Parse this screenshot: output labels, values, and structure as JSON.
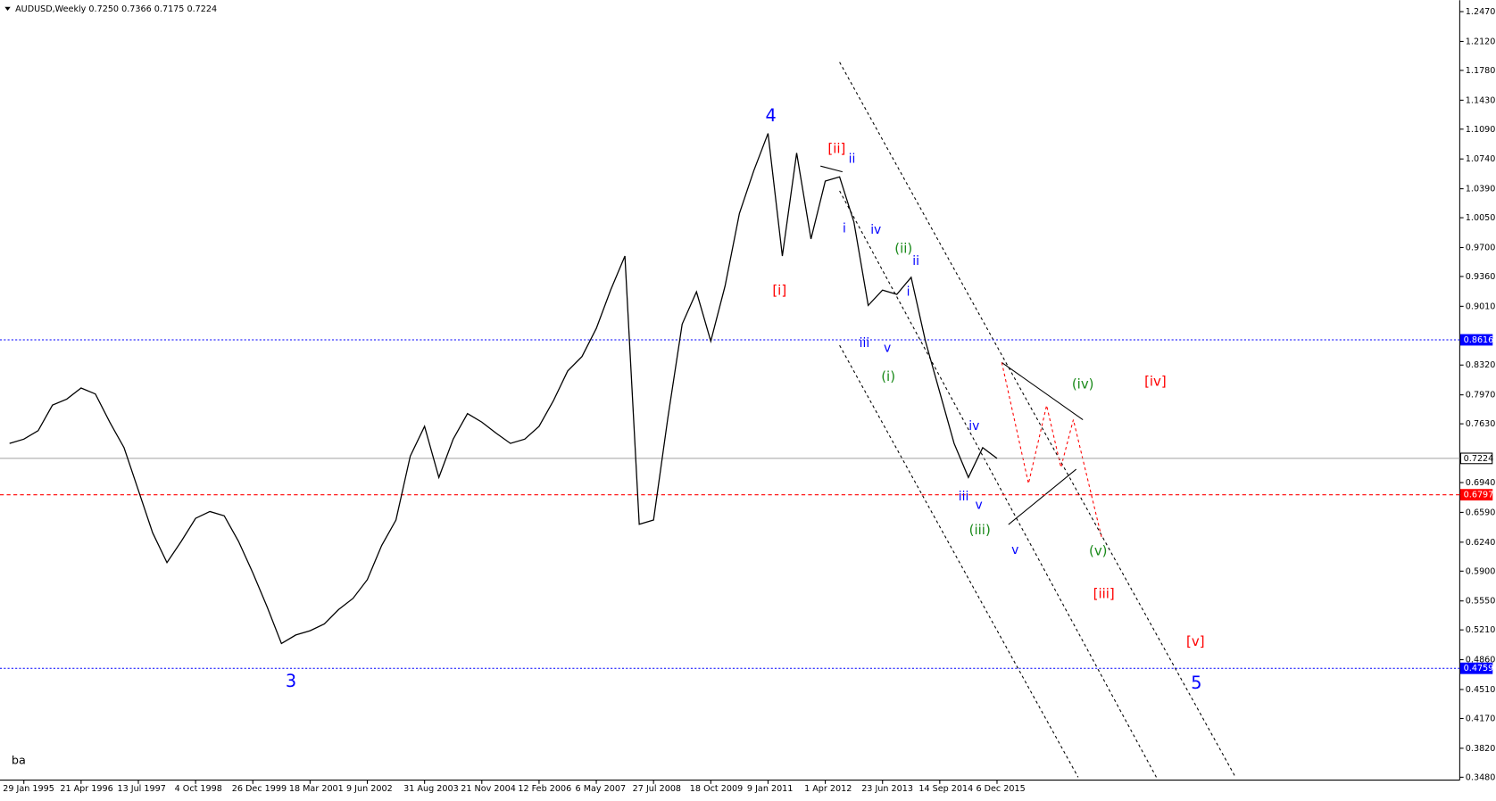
{
  "chart_data": {
    "type": "line",
    "title": "AUDUSD,Weekly  0.7250 0.7366 0.7175 0.7224",
    "footnote": "ba",
    "color": "#000000",
    "categories": [
      null,
      "29 Jan 1995",
      null,
      null,
      null,
      "21 Apr 1996",
      null,
      null,
      null,
      "13 Jul 1997",
      null,
      null,
      null,
      "4 Oct 1998",
      null,
      null,
      null,
      "26 Dec 1999",
      null,
      null,
      null,
      "18 Mar 2001",
      null,
      null,
      null,
      "9 Jun 2002",
      null,
      null,
      null,
      "31 Aug 2003",
      null,
      null,
      null,
      "21 Nov 2004",
      null,
      null,
      null,
      "12 Feb 2006",
      null,
      null,
      null,
      "6 May 2007",
      null,
      null,
      null,
      "27 Jul 2008",
      null,
      null,
      null,
      "18 Oct 2009",
      null,
      null,
      null,
      "9 Jan 2011",
      null,
      null,
      null,
      "1 Apr 2012",
      null,
      null,
      null,
      "23 Jun 2013",
      null,
      null,
      null,
      "14 Sep 2014",
      null,
      null,
      null,
      "6 Dec 2015"
    ],
    "values": [
      0.74,
      0.745,
      0.755,
      0.785,
      0.792,
      0.805,
      0.798,
      0.765,
      0.735,
      0.685,
      0.635,
      0.6,
      0.625,
      0.652,
      0.66,
      0.655,
      0.625,
      0.588,
      0.548,
      0.505,
      0.515,
      0.52,
      0.528,
      0.545,
      0.558,
      0.58,
      0.62,
      0.65,
      0.725,
      0.76,
      0.7,
      0.745,
      0.775,
      0.765,
      0.752,
      0.74,
      0.745,
      0.76,
      0.79,
      0.825,
      0.842,
      0.875,
      0.92,
      0.96,
      0.645,
      0.65,
      0.77,
      0.88,
      0.918,
      0.86,
      0.925,
      1.01,
      1.06,
      1.104,
      0.96,
      1.081,
      0.98,
      1.048,
      1.053,
      1.0,
      0.902,
      0.92,
      0.915,
      0.935,
      0.86,
      0.8,
      0.74,
      0.7,
      0.735,
      0.7224
    ],
    "ylim": [
      0.348,
      1.247
    ],
    "yticks": [
      {
        "value": 1.247,
        "label": "1.2470"
      },
      {
        "value": 1.212,
        "label": "1.2120"
      },
      {
        "value": 1.178,
        "label": "1.1780"
      },
      {
        "value": 1.143,
        "label": "1.1430"
      },
      {
        "value": 1.109,
        "label": "1.1090"
      },
      {
        "value": 1.074,
        "label": "1.0740"
      },
      {
        "value": 1.039,
        "label": "1.0390"
      },
      {
        "value": 1.005,
        "label": "1.0050"
      },
      {
        "value": 0.97,
        "label": "0.9700"
      },
      {
        "value": 0.936,
        "label": "0.9360"
      },
      {
        "value": 0.901,
        "label": "0.9010"
      },
      {
        "value": 0.832,
        "label": "0.8320"
      },
      {
        "value": 0.797,
        "label": "0.7970"
      },
      {
        "value": 0.763,
        "label": "0.7630"
      },
      {
        "value": 0.694,
        "label": "0.6940"
      },
      {
        "value": 0.659,
        "label": "0.6590"
      },
      {
        "value": 0.624,
        "label": "0.6240"
      },
      {
        "value": 0.59,
        "label": "0.5900"
      },
      {
        "value": 0.555,
        "label": "0.5550"
      },
      {
        "value": 0.521,
        "label": "0.5210"
      },
      {
        "value": 0.486,
        "label": "0.4860"
      },
      {
        "value": 0.451,
        "label": "0.4510"
      },
      {
        "value": 0.417,
        "label": "0.4170"
      },
      {
        "value": 0.382,
        "label": "0.3820"
      },
      {
        "value": 0.348,
        "label": "0.3480"
      }
    ],
    "grid": false,
    "hlines": [
      {
        "value": 0.8616,
        "label": "0.8616",
        "color": "#0000ff",
        "style": "dotted"
      },
      {
        "value": 0.7224,
        "label": "0.7224",
        "color": "#a0a0a0",
        "style": "solid"
      },
      {
        "value": 0.6797,
        "label": "0.6797",
        "color": "#ff0000",
        "style": "dashed"
      },
      {
        "value": 0.4759,
        "label": "0.4759",
        "color": "#0000ff",
        "style": "dotted"
      }
    ],
    "annotations": [
      {
        "text": "4",
        "color": "#0000ff"
      },
      {
        "text": "3",
        "color": "#0000ff"
      },
      {
        "text": "5",
        "color": "#0000ff"
      },
      {
        "text": "[i]",
        "color": "#ff0000"
      },
      {
        "text": "[ii]",
        "color": "#ff0000"
      },
      {
        "text": "[iii]",
        "color": "#ff0000"
      },
      {
        "text": "[iv]",
        "color": "#ff0000"
      },
      {
        "text": "[v]",
        "color": "#ff0000"
      },
      {
        "text": "ii",
        "color": "#0000ff"
      },
      {
        "text": "i",
        "color": "#0000ff"
      },
      {
        "text": "iv",
        "color": "#0000ff"
      },
      {
        "text": "iii",
        "color": "#0000ff"
      },
      {
        "text": "v",
        "color": "#0000ff"
      },
      {
        "text": "(i)",
        "color": "#1a8a1a"
      },
      {
        "text": "(ii)",
        "color": "#1a8a1a"
      },
      {
        "text": "ii",
        "color": "#0000ff"
      },
      {
        "text": "i",
        "color": "#0000ff"
      },
      {
        "text": "iv",
        "color": "#0000ff"
      },
      {
        "text": "iii",
        "color": "#0000ff"
      },
      {
        "text": "v",
        "color": "#0000ff"
      },
      {
        "text": "(iii)",
        "color": "#1a8a1a"
      },
      {
        "text": "v",
        "color": "#0000ff"
      },
      {
        "text": "(iv)",
        "color": "#1a8a1a"
      },
      {
        "text": "(v)",
        "color": "#1a8a1a"
      }
    ]
  }
}
